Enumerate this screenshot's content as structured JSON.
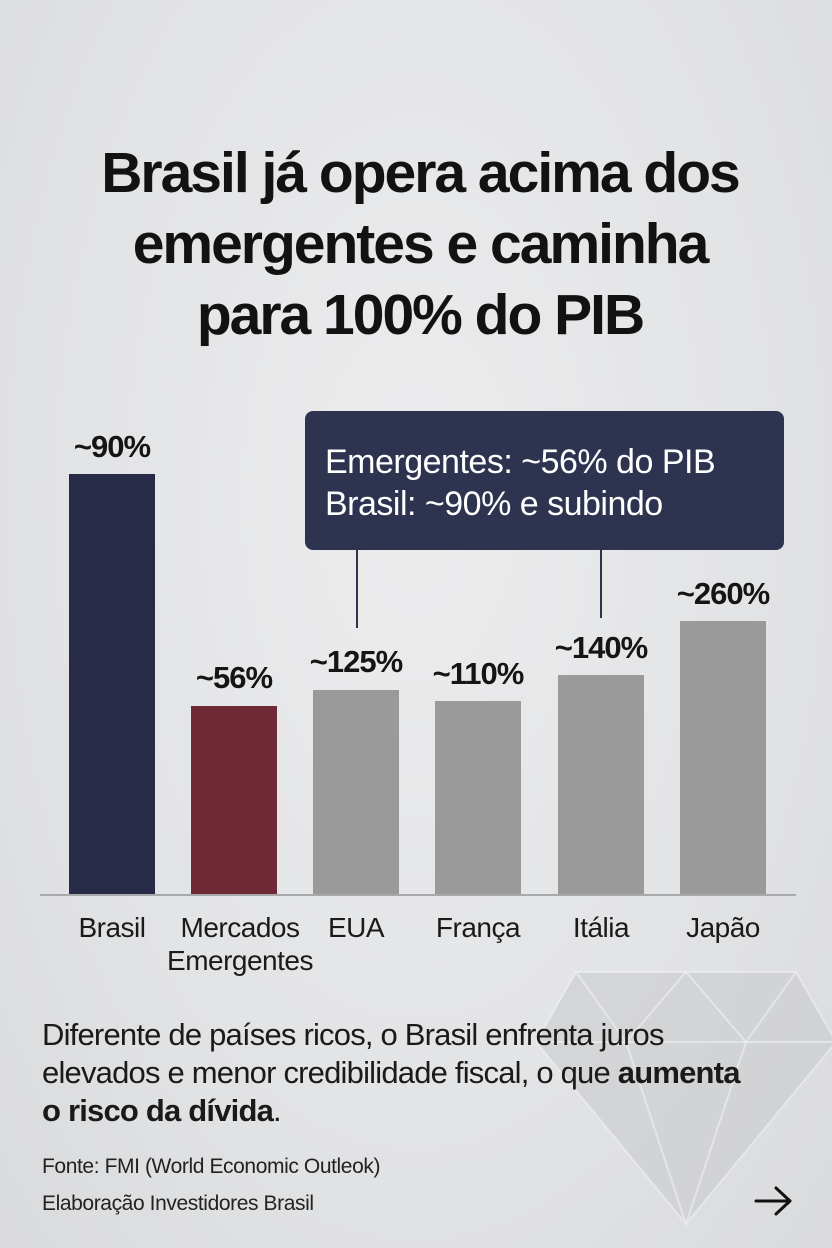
{
  "title": {
    "line1": "Brasil já opera acima dos",
    "line2": "emergentes e caminha",
    "line3": "para 100% do PIB"
  },
  "callout": {
    "line1": "Emergentes: ~56% do PIB",
    "line2": "Brasil: ~90% e subindo"
  },
  "chart_data": {
    "type": "bar",
    "categories": [
      [
        "Brasil"
      ],
      [
        "Mercados",
        "Emergentes"
      ],
      [
        "EUA"
      ],
      [
        "França"
      ],
      [
        "Itália"
      ],
      [
        "Japão"
      ]
    ],
    "values": [
      90,
      56,
      125,
      110,
      140,
      260
    ],
    "data_labels": [
      "~90%",
      "~56%",
      "~125%",
      "~110%",
      "~140%",
      "~260%"
    ],
    "colors": [
      "#272b48",
      "#6e2a36",
      "#9a9a9b",
      "#9a9a9b",
      "#9a9a9b",
      "#9a9a9b"
    ],
    "title": "",
    "xlabel": "",
    "ylabel": "",
    "grid": false,
    "legend": "none"
  },
  "body": {
    "text_part1": "Diferente de países ricos, o Brasil enfrenta juros elevados e menor credibilidade fiscal, o que ",
    "text_bold": "aumenta o risco da dívida",
    "text_part2": "."
  },
  "source": {
    "line1": "Fonte: FMI (World Economic Outleok)",
    "line2": "Elaboração Investidores Brasil"
  },
  "icons": {
    "next": "arrow-right-icon",
    "decoration": "diamond-icon"
  }
}
